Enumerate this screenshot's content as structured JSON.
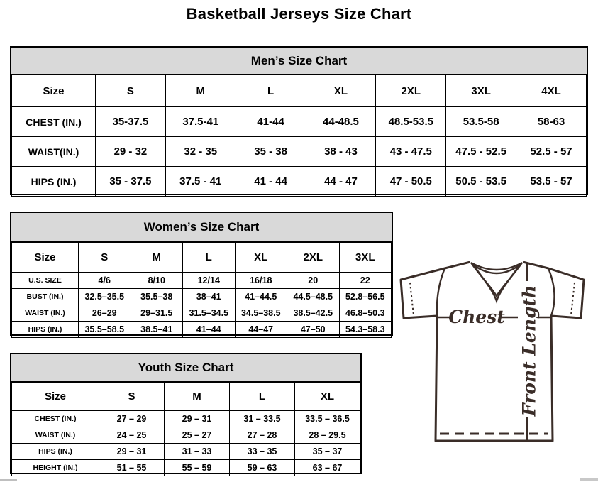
{
  "title": "Basketball Jerseys Size Chart",
  "colors": {
    "table_header_bg": "#d9d9d9",
    "diagram_ink": "#3a2d28",
    "border": "#000000"
  },
  "tables": {
    "men": {
      "title": "Men’s Size Chart",
      "columns": [
        "Size",
        "S",
        "M",
        "L",
        "XL",
        "2XL",
        "3XL",
        "4XL"
      ],
      "rows": [
        {
          "label": "CHEST (IN.)",
          "values": [
            "35-37.5",
            "37.5-41",
            "41-44",
            "44-48.5",
            "48.5-53.5",
            "53.5-58",
            "58-63"
          ]
        },
        {
          "label": "WAIST(IN.)",
          "values": [
            "29 - 32",
            "32 - 35",
            "35 - 38",
            "38 - 43",
            "43 - 47.5",
            "47.5 - 52.5",
            "52.5 - 57"
          ]
        },
        {
          "label": "HIPS (IN.)",
          "values": [
            "35 - 37.5",
            "37.5 - 41",
            "41 - 44",
            "44 - 47",
            "47 - 50.5",
            "50.5 - 53.5",
            "53.5 - 57"
          ]
        }
      ]
    },
    "women": {
      "title": "Women’s Size Chart",
      "columns": [
        "Size",
        "S",
        "M",
        "L",
        "XL",
        "2XL",
        "3XL"
      ],
      "rows": [
        {
          "label": "U.S. SIZE",
          "values": [
            "4/6",
            "8/10",
            "12/14",
            "16/18",
            "20",
            "22"
          ]
        },
        {
          "label": "BUST (IN.)",
          "values": [
            "32.5–35.5",
            "35.5–38",
            "38–41",
            "41–44.5",
            "44.5–48.5",
            "52.8–56.5"
          ]
        },
        {
          "label": "WAIST (IN.)",
          "values": [
            "26–29",
            "29–31.5",
            "31.5–34.5",
            "34.5–38.5",
            "38.5–42.5",
            "46.8–50.3"
          ]
        },
        {
          "label": "HIPS (IN.)",
          "values": [
            "35.5–58.5",
            "38.5–41",
            "41–44",
            "44–47",
            "47–50",
            "54.3–58.3"
          ]
        }
      ]
    },
    "youth": {
      "title": "Youth Size Chart",
      "columns": [
        "Size",
        "S",
        "M",
        "L",
        "XL"
      ],
      "rows": [
        {
          "label": "CHEST (IN.)",
          "values": [
            "27 – 29",
            "29 – 31",
            "31 – 33.5",
            "33.5 – 36.5"
          ]
        },
        {
          "label": "WAIST (IN.)",
          "values": [
            "24 – 25",
            "25 – 27",
            "27 – 28",
            "28 – 29.5"
          ]
        },
        {
          "label": "HIPS (IN.)",
          "values": [
            "29 – 31",
            "31 – 33",
            "33 – 35",
            "35 – 37"
          ]
        },
        {
          "label": "HEIGHT (IN.)",
          "values": [
            "51 – 55",
            "55 – 59",
            "59 – 63",
            "63 – 67"
          ]
        }
      ]
    }
  },
  "diagram": {
    "chest_label": "Chest",
    "front_length_label": "Front Length"
  }
}
